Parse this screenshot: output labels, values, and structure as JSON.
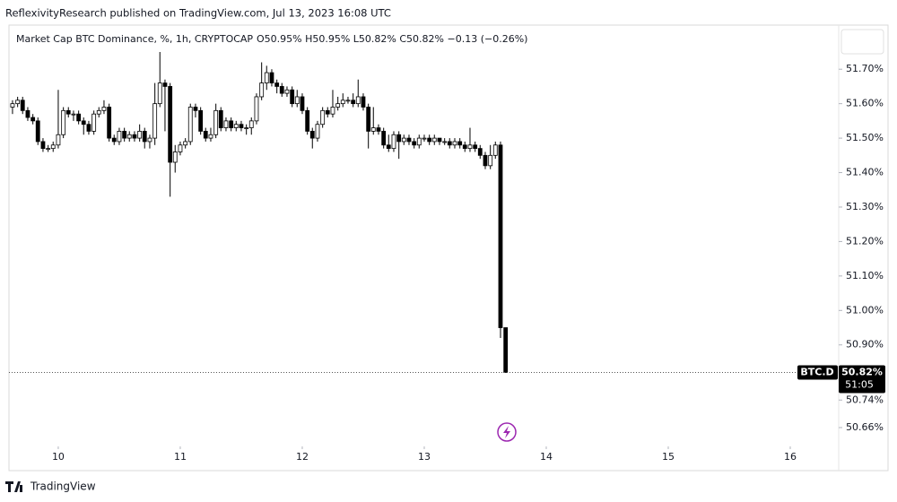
{
  "header": "ReflexivityResearch published on TradingView.com, Jul 13, 2023 16:08 UTC",
  "footer": "TradingView",
  "chart_data": {
    "type": "candlestick",
    "title": "Market Cap BTC Dominance, %, 1h, CRYPTOCAP",
    "ohlc_label": "O50.95% H50.95% L50.82% C50.82% −0.13 (−0.26%)",
    "symbol_label": "BTC.D",
    "last_price_label": "50.82%",
    "countdown_label": "51:05",
    "up_color": "#ffffff",
    "down_color": "#000000",
    "wick_color": "#000000",
    "grid": false,
    "xlim": [
      9.596,
      16.397
    ],
    "xticks": [
      10,
      11,
      12,
      13,
      14,
      15,
      16
    ],
    "ylim": [
      50.608,
      51.828
    ],
    "yticks": [
      {
        "value": 51.7,
        "label": "51.70%"
      },
      {
        "value": 51.6,
        "label": "51.60%"
      },
      {
        "value": 51.5,
        "label": "51.50%"
      },
      {
        "value": 51.4,
        "label": "51.40%"
      },
      {
        "value": 51.3,
        "label": "51.30%"
      },
      {
        "value": 51.2,
        "label": "51.20%"
      },
      {
        "value": 51.1,
        "label": "51.10%"
      },
      {
        "value": 51.0,
        "label": "51.00%"
      },
      {
        "value": 50.9,
        "label": "50.90%"
      },
      {
        "value": 50.74,
        "label": "50.74%"
      },
      {
        "value": 50.66,
        "label": "50.66%"
      }
    ],
    "x": [
      9.625,
      9.667,
      9.708,
      9.75,
      9.792,
      9.833,
      9.875,
      9.917,
      9.958,
      10,
      10.042,
      10.083,
      10.125,
      10.167,
      10.208,
      10.25,
      10.292,
      10.333,
      10.375,
      10.417,
      10.458,
      10.5,
      10.542,
      10.583,
      10.625,
      10.667,
      10.708,
      10.75,
      10.792,
      10.833,
      10.875,
      10.917,
      10.958,
      11,
      11.042,
      11.083,
      11.125,
      11.167,
      11.208,
      11.25,
      11.292,
      11.333,
      11.375,
      11.417,
      11.458,
      11.5,
      11.542,
      11.583,
      11.625,
      11.667,
      11.708,
      11.75,
      11.792,
      11.833,
      11.875,
      11.917,
      11.958,
      12,
      12.042,
      12.083,
      12.125,
      12.167,
      12.208,
      12.25,
      12.292,
      12.333,
      12.375,
      12.417,
      12.458,
      12.5,
      12.542,
      12.583,
      12.625,
      12.667,
      12.708,
      12.75,
      12.792,
      12.833,
      12.875,
      12.917,
      12.958,
      13,
      13.042,
      13.083,
      13.125,
      13.167,
      13.208,
      13.25,
      13.292,
      13.333,
      13.375,
      13.417,
      13.458,
      13.5,
      13.542,
      13.583,
      13.625,
      13.667
    ],
    "open": [
      51.59,
      51.6,
      51.61,
      51.58,
      51.56,
      51.55,
      51.49,
      51.47,
      51.47,
      51.48,
      51.51,
      51.58,
      51.57,
      51.57,
      51.55,
      51.54,
      51.52,
      51.57,
      51.58,
      51.59,
      51.5,
      51.49,
      51.52,
      51.5,
      51.51,
      51.5,
      51.52,
      51.49,
      51.5,
      51.6,
      51.66,
      51.65,
      51.43,
      51.46,
      51.48,
      51.49,
      51.59,
      51.58,
      51.52,
      51.5,
      51.51,
      51.58,
      51.53,
      51.55,
      51.53,
      51.54,
      51.53,
      51.53,
      51.55,
      51.62,
      51.66,
      51.69,
      51.66,
      51.65,
      51.63,
      51.64,
      51.6,
      51.62,
      51.58,
      51.52,
      51.5,
      51.54,
      51.58,
      51.57,
      51.59,
      51.6,
      51.61,
      51.61,
      51.6,
      51.62,
      51.59,
      51.52,
      51.53,
      51.52,
      51.48,
      51.47,
      51.51,
      51.49,
      51.5,
      51.49,
      51.48,
      51.5,
      51.5,
      51.49,
      51.5,
      51.49,
      51.49,
      51.48,
      51.49,
      51.48,
      51.47,
      51.48,
      51.47,
      51.45,
      51.42,
      51.45,
      51.48,
      50.95
    ],
    "high": [
      51.61,
      51.62,
      51.62,
      51.59,
      51.57,
      51.56,
      51.5,
      51.48,
      51.49,
      51.64,
      51.59,
      51.59,
      51.58,
      51.58,
      51.56,
      51.55,
      51.58,
      51.59,
      51.61,
      51.6,
      51.51,
      51.53,
      51.53,
      51.52,
      51.52,
      51.54,
      51.53,
      51.51,
      51.66,
      51.75,
      51.67,
      51.66,
      51.48,
      51.49,
      51.5,
      51.6,
      51.6,
      51.59,
      51.53,
      51.53,
      51.6,
      51.59,
      51.56,
      51.56,
      51.55,
      51.55,
      51.54,
      51.56,
      51.63,
      51.72,
      51.71,
      51.7,
      51.67,
      51.66,
      51.65,
      51.65,
      51.64,
      51.63,
      51.59,
      51.53,
      51.55,
      51.59,
      51.59,
      51.64,
      51.62,
      51.63,
      51.62,
      51.63,
      51.67,
      51.63,
      51.6,
      51.59,
      51.54,
      51.53,
      51.51,
      51.52,
      51.52,
      51.51,
      51.51,
      51.5,
      51.51,
      51.51,
      51.51,
      51.51,
      51.5,
      51.5,
      51.5,
      51.5,
      51.5,
      51.49,
      51.53,
      51.49,
      51.48,
      51.46,
      51.48,
      51.49,
      51.49,
      50.95
    ],
    "low": [
      51.57,
      51.59,
      51.57,
      51.55,
      51.54,
      51.48,
      51.46,
      51.46,
      51.46,
      51.47,
      51.5,
      51.56,
      51.55,
      51.54,
      51.51,
      51.51,
      51.51,
      51.56,
      51.57,
      51.49,
      51.48,
      51.48,
      51.49,
      51.49,
      51.49,
      51.49,
      51.47,
      51.47,
      51.48,
      51.59,
      51.52,
      51.33,
      51.4,
      51.45,
      51.47,
      51.48,
      51.56,
      51.51,
      51.49,
      51.49,
      51.5,
      51.52,
      51.52,
      51.52,
      51.52,
      51.52,
      51.51,
      51.51,
      51.54,
      51.61,
      51.64,
      51.65,
      51.63,
      51.62,
      51.62,
      51.59,
      51.59,
      51.57,
      51.51,
      51.47,
      51.49,
      51.53,
      51.56,
      51.56,
      51.58,
      51.59,
      51.6,
      51.59,
      51.59,
      51.58,
      51.47,
      51.51,
      51.51,
      51.47,
      51.46,
      51.46,
      51.44,
      51.48,
      51.48,
      51.47,
      51.47,
      51.49,
      51.48,
      51.48,
      51.48,
      51.48,
      51.47,
      51.47,
      51.47,
      51.46,
      51.46,
      51.46,
      51.44,
      51.41,
      51.41,
      51.44,
      50.92,
      50.82
    ],
    "close": [
      51.6,
      51.61,
      51.58,
      51.56,
      51.55,
      51.49,
      51.47,
      51.47,
      51.48,
      51.51,
      51.58,
      51.57,
      51.57,
      51.55,
      51.54,
      51.52,
      51.57,
      51.58,
      51.59,
      51.5,
      51.49,
      51.52,
      51.5,
      51.51,
      51.5,
      51.52,
      51.49,
      51.5,
      51.6,
      51.66,
      51.65,
      51.43,
      51.46,
      51.48,
      51.49,
      51.59,
      51.58,
      51.52,
      51.5,
      51.51,
      51.58,
      51.53,
      51.55,
      51.53,
      51.54,
      51.53,
      51.53,
      51.55,
      51.62,
      51.66,
      51.69,
      51.66,
      51.65,
      51.63,
      51.64,
      51.6,
      51.62,
      51.58,
      51.52,
      51.5,
      51.54,
      51.58,
      51.57,
      51.59,
      51.6,
      51.61,
      51.61,
      51.6,
      51.62,
      51.59,
      51.52,
      51.53,
      51.52,
      51.48,
      51.47,
      51.51,
      51.49,
      51.5,
      51.49,
      51.48,
      51.5,
      51.5,
      51.49,
      51.5,
      51.49,
      51.49,
      51.48,
      51.49,
      51.48,
      51.47,
      51.48,
      51.47,
      51.45,
      51.42,
      51.45,
      51.48,
      50.95,
      50.82
    ]
  }
}
